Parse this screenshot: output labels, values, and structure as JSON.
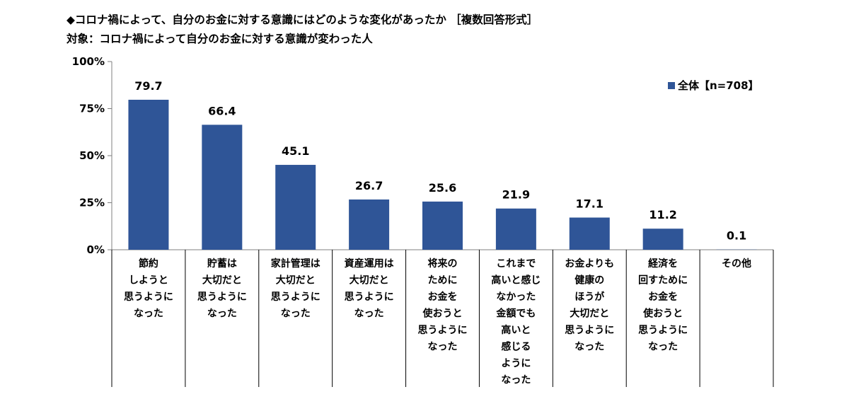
{
  "header": {
    "title": "◆コロナ禍によって、自分のお金に対する意識にはどのような変化があったか ［複数回答形式］",
    "subtitle": "対象：コロナ禍によって自分のお金に対する意識が変わった人"
  },
  "chart_data": {
    "type": "bar",
    "categories": [
      "節約しようと思うようになった",
      "貯蓄は大切だと思うようになった",
      "家計管理は大切だと思うようになった",
      "資産運用は大切だと思うようになった",
      "将来のためにお金を使おうと思うようになった",
      "これまで高いと感じなかった金額でも高いと感じるようになった",
      "お金よりも健康のほうが大切だと思うようになった",
      "経済を回すためにお金を使おうと思うようになった",
      "その他"
    ],
    "category_lines": [
      [
        "節約",
        "しようと",
        "思うように",
        "なった"
      ],
      [
        "貯蓄は",
        "大切だと",
        "思うように",
        "なった"
      ],
      [
        "家計管理は",
        "大切だと",
        "思うように",
        "なった"
      ],
      [
        "資産運用は",
        "大切だと",
        "思うように",
        "なった"
      ],
      [
        "将来の",
        "ために",
        "お金を",
        "使おうと",
        "思うように",
        "なった"
      ],
      [
        "これまで",
        "高いと感じ",
        "なかった",
        "金額でも",
        "高いと",
        "感じる",
        "ように",
        "なった"
      ],
      [
        "お金よりも",
        "健康の",
        "ほうが",
        "大切だと",
        "思うように",
        "なった"
      ],
      [
        "経済を",
        "回すために",
        "お金を",
        "使おうと",
        "思うように",
        "なった"
      ],
      [
        "その他"
      ]
    ],
    "series": [
      {
        "name": "全体【n=708】",
        "values": [
          79.7,
          66.4,
          45.1,
          26.7,
          25.6,
          21.9,
          17.1,
          11.2,
          0.1
        ]
      }
    ],
    "value_labels": [
      "79.7",
      "66.4",
      "45.1",
      "26.7",
      "25.6",
      "21.9",
      "17.1",
      "11.2",
      "0.1"
    ],
    "ylim": [
      0,
      100
    ],
    "yticks": [
      0,
      25,
      50,
      75,
      100
    ],
    "ytick_labels": [
      "0%",
      "25%",
      "50%",
      "75%",
      "100%"
    ],
    "grid": false,
    "legend_position": "top-right",
    "colors": {
      "bar": "#2f5597",
      "axis": "#7f7f7f"
    }
  }
}
